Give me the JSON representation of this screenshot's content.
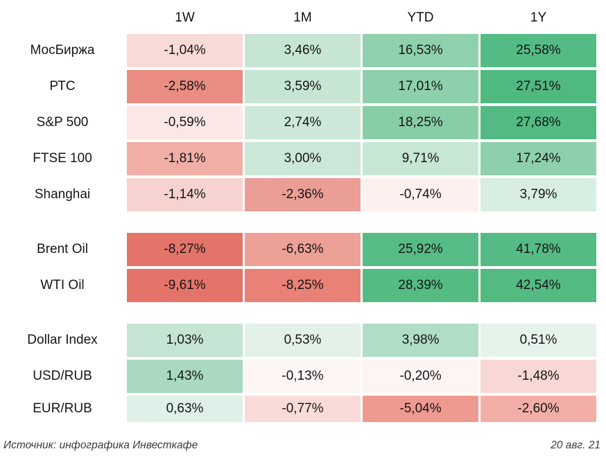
{
  "chart_data": {
    "type": "heatmap",
    "title": "",
    "columns": [
      "1W",
      "1M",
      "YTD",
      "1Y"
    ],
    "value_format": "percent, comma decimal separator",
    "color_legend": {
      "strong_negative": "#e4746a",
      "neutral": "#ffffff",
      "strong_positive": "#53ba83"
    },
    "groups": [
      {
        "name": "equity-indices",
        "rows": [
          {
            "label": "МосБиржа",
            "values": [
              -1.04,
              3.46,
              16.53,
              25.58
            ],
            "display": [
              "-1,04%",
              "3,46%",
              "16,53%",
              "25,58%"
            ],
            "colors": [
              "#f8dad7",
              "#c7e5d3",
              "#8fd0ad",
              "#55bb84"
            ]
          },
          {
            "label": "РТС",
            "values": [
              -2.58,
              3.59,
              17.01,
              27.51
            ],
            "display": [
              "-2,58%",
              "3,59%",
              "17,01%",
              "27,51%"
            ],
            "colors": [
              "#e98d83",
              "#c6e5d3",
              "#8dd0ab",
              "#50b980"
            ]
          },
          {
            "label": "S&P 500",
            "values": [
              -0.59,
              2.74,
              18.25,
              27.68
            ],
            "display": [
              "-0,59%",
              "2,74%",
              "18,25%",
              "27,68%"
            ],
            "colors": [
              "#fbe8e6",
              "#cde8d8",
              "#87cea6",
              "#53ba83"
            ]
          },
          {
            "label": "FTSE 100",
            "values": [
              -1.81,
              3.0,
              9.71,
              17.24
            ],
            "display": [
              "-1,81%",
              "3,00%",
              "9,71%",
              "17,24%"
            ],
            "colors": [
              "#f0aea6",
              "#cbe7d7",
              "#c7e6d4",
              "#8ed0ac"
            ]
          },
          {
            "label": "Shanghai",
            "values": [
              -1.14,
              -2.36,
              -0.74,
              3.79
            ],
            "display": [
              "-1,14%",
              "-2,36%",
              "-0,74%",
              "3,79%"
            ],
            "colors": [
              "#f6d3d0",
              "#eb9e95",
              "#fdf0ee",
              "#d8eee2"
            ]
          }
        ]
      },
      {
        "name": "commodities",
        "rows": [
          {
            "label": "Brent Oil",
            "values": [
              -8.27,
              -6.63,
              25.92,
              41.78
            ],
            "display": [
              "-8,27%",
              "-6,63%",
              "25,92%",
              "41,78%"
            ],
            "colors": [
              "#e4746a",
              "#eda096",
              "#56bb85",
              "#55bb84"
            ]
          },
          {
            "label": "WTI Oil",
            "values": [
              -9.61,
              -8.25,
              28.39,
              42.54
            ],
            "display": [
              "-9,61%",
              "-8,25%",
              "28,39%",
              "42,54%"
            ],
            "colors": [
              "#e4746a",
              "#e98176",
              "#54bb83",
              "#53ba82"
            ]
          }
        ]
      },
      {
        "name": "currencies",
        "rows": [
          {
            "label": "Dollar Index",
            "values": [
              1.03,
              0.53,
              3.98,
              0.51
            ],
            "display": [
              "1,03%",
              "0,53%",
              "3,98%",
              "0,51%"
            ],
            "colors": [
              "#c6e4d3",
              "#e3f2e9",
              "#b0ddc6",
              "#e5f3eb"
            ]
          },
          {
            "label": "USD/RUB",
            "values": [
              1.43,
              -0.13,
              -0.2,
              -1.48
            ],
            "display": [
              "1,43%",
              "-0,13%",
              "-0,20%",
              "-1,48%"
            ],
            "colors": [
              "#a9dac0",
              "#fdf6f5",
              "#fdf4f3",
              "#f7d8d5"
            ]
          },
          {
            "label": "EUR/RUB",
            "values": [
              0.63,
              -0.77,
              -5.04,
              -2.6
            ],
            "display": [
              "0,63%",
              "-0,77%",
              "-5,04%",
              "-2,60%"
            ],
            "colors": [
              "#def0e7",
              "#f9dcd9",
              "#ee9a91",
              "#f3afa7"
            ]
          }
        ]
      }
    ]
  },
  "footer": {
    "source": "Источник: инфографика Инвесткафе",
    "date": "20 авг. 21"
  }
}
